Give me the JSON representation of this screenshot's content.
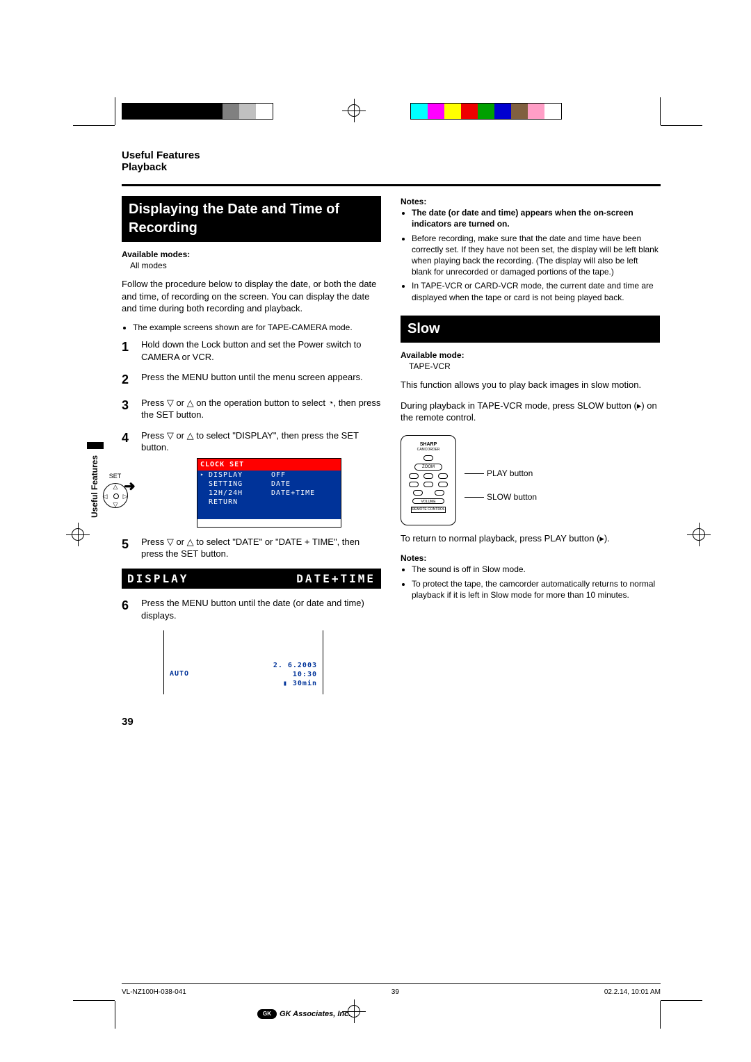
{
  "colorbars": {
    "left": [
      "#000000",
      "#000000",
      "#000000",
      "#000000",
      "#000000",
      "#000000",
      "#808080",
      "#c0c0c0",
      "#ffffff"
    ],
    "right": [
      "#00ffff",
      "#ff00ff",
      "#ffff00",
      "#ee0000",
      "#00a000",
      "#0000d0",
      "#806040",
      "#ff9ec6",
      "#ffffff"
    ]
  },
  "header": {
    "line1": "Useful Features",
    "line2": "Playback"
  },
  "sideTab": "Useful Features",
  "left": {
    "heading": "Displaying the Date and Time of Recording",
    "availModesLabel": "Available modes:",
    "availModes": "All modes",
    "intro": "Follow the procedure below to display the date, or both the date and time, of recording on the screen. You can display the date and time during both recording and playback.",
    "note1": "The example screens shown are for TAPE-CAMERA mode.",
    "steps": {
      "1": "Hold down the Lock button and set the Power switch to CAMERA or VCR.",
      "2": "Press the MENU button until the menu screen appears.",
      "3a": "Press ",
      "3b": " or ",
      "3c": " on the operation button to select ",
      "3d": ", then press the SET button.",
      "4a": "Press ",
      "4b": " or ",
      "4c": " to select \"DISPLAY\", then press the SET button.",
      "5a": "Press ",
      "5b": " or ",
      "5c": " to select \"DATE\" or \"DATE + TIME\", then press the SET button.",
      "6": "Press the MENU button until the date (or date and time) displays."
    },
    "menu": {
      "title": "CLOCK SET",
      "rows": [
        {
          "label": "DISPLAY",
          "value": "OFF",
          "hl": true
        },
        {
          "label": "SETTING",
          "value": "DATE"
        },
        {
          "label": "12H/24H",
          "value": "DATE+TIME"
        },
        {
          "label": "RETURN",
          "value": ""
        }
      ],
      "setLabel": "SET"
    },
    "highlight": {
      "l": "DISPLAY",
      "r": "DATE+TIME"
    },
    "result": {
      "auto": "AUTO",
      "date": "2.  6.2003",
      "time": "10:30",
      "battery": "30min"
    }
  },
  "right": {
    "notesLabel": "Notes:",
    "notesA": [
      "The date (or date and time) appears when the on-screen indicators are turned on.",
      "Before recording, make sure that the date and time have been correctly set. If they have not been set, the display will be left blank when playing back the recording. (The display will also be left blank for unrecorded or damaged portions of the tape.)",
      "In TAPE-VCR or CARD-VCR mode, the current date and time are displayed when the tape or card is not being played back."
    ],
    "heading": "Slow",
    "availModeLabel": "Available mode:",
    "availMode": "TAPE-VCR",
    "intro": "This function allows you to play back images in slow motion.",
    "instr": "During playback in TAPE-VCR mode, press SLOW button (▸) on the remote control.",
    "remote": {
      "brand": "SHARP",
      "sub": "CAMCORDER",
      "zoom": "ZOOM",
      "vol": "VOLUME",
      "rc": "REMOTE CONTROL",
      "playLabel": "PLAY button",
      "slowLabel": "SLOW button"
    },
    "return": "To return to normal playback, press PLAY button (▸).",
    "notesB": [
      "The sound is off in Slow mode.",
      "To protect the tape, the camcorder automatically returns to normal playback if it is left in Slow mode for more than 10 minutes."
    ]
  },
  "pageNum": "39",
  "footer": {
    "left": "VL-NZ100H-038-041",
    "mid": "39",
    "right": "02.2.14, 10:01 AM",
    "logo": "GK Associates, Inc."
  }
}
